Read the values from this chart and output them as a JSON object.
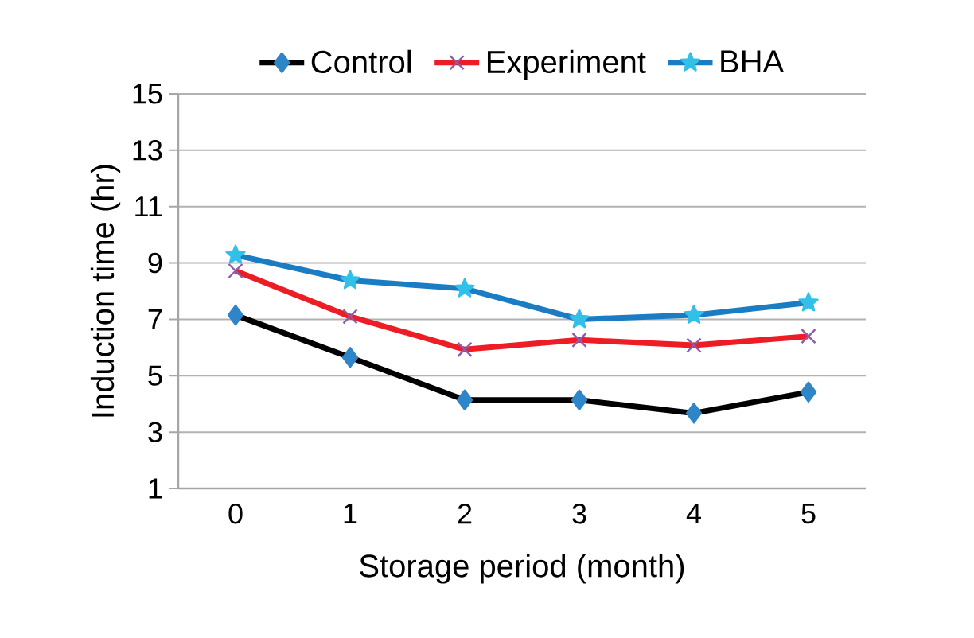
{
  "chart_data": {
    "type": "line",
    "xlabel": "Storage period (month)",
    "ylabel": "Induction time (hr)",
    "categories": [
      "0",
      "1",
      "2",
      "3",
      "4",
      "5"
    ],
    "series": [
      {
        "name": "Control",
        "color": "#000000",
        "marker": "diamond",
        "values": [
          7.15,
          5.65,
          4.14,
          4.14,
          3.67,
          4.42
        ]
      },
      {
        "name": "Experiment",
        "color": "#ee1c24",
        "marker": "cross",
        "values": [
          8.72,
          7.1,
          5.93,
          6.27,
          6.08,
          6.4
        ]
      },
      {
        "name": "BHA",
        "color": "#1a7dc4",
        "marker": "star",
        "values": [
          9.28,
          8.38,
          8.09,
          7.0,
          7.15,
          7.59
        ]
      }
    ],
    "ylim": [
      1,
      15
    ],
    "yticks": [
      1,
      3,
      5,
      7,
      9,
      11,
      13,
      15
    ],
    "grid": "y",
    "legend": "top"
  }
}
